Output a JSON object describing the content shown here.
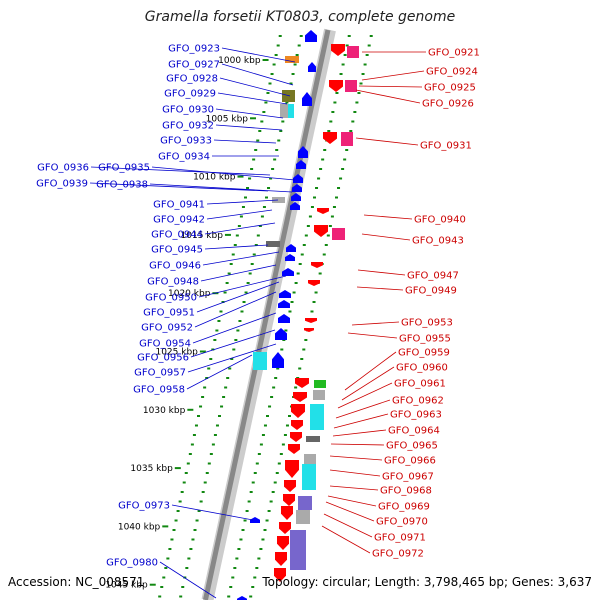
{
  "title": "Gramella forsetii KT0803, complete genome",
  "footer": {
    "accession": "Accession: NC_008571",
    "summary": "Topology: circular; Length: 3,798,465 bp; Genes: 3,637"
  },
  "colors": {
    "left_label": "#0000cc",
    "right_label": "#cc0000",
    "left_arrow": "#0000ff",
    "right_arrow": "#ff0000",
    "tick": "#118811",
    "backbone": "#888888",
    "magenta": "#ee2277",
    "cyan": "#22e0e8",
    "green": "#22bb22",
    "olive": "#777722",
    "orange": "#ee8822",
    "gray": "#aaaaaa",
    "dark_gray": "#666666",
    "purple": "#7766cc"
  },
  "kbp_ticks": [
    "1000 kbp",
    "1005 kbp",
    "1010 kbp",
    "1015 kbp",
    "1020 kbp",
    "1025 kbp",
    "1030 kbp",
    "1035 kbp",
    "1040 kbp",
    "1045 kbp"
  ],
  "left_genes": [
    "GFO_0923",
    "GFO_0927",
    "GFO_0928",
    "GFO_0929",
    "GFO_0930",
    "GFO_0932",
    "GFO_0933",
    "GFO_0934",
    "GFO_0936",
    "GFO_0935",
    "GFO_0939",
    "GFO_0938",
    "GFO_0941",
    "GFO_0942",
    "GFO_0944",
    "GFO_0945",
    "GFO_0946",
    "GFO_0948",
    "GFO_0950",
    "GFO_0951",
    "GFO_0952",
    "GFO_0954",
    "GFO_0956",
    "GFO_0957",
    "GFO_0958",
    "GFO_0973",
    "GFO_0980"
  ],
  "right_genes": [
    "GFO_0921",
    "GFO_0924",
    "GFO_0925",
    "GFO_0926",
    "GFO_0931",
    "GFO_0940",
    "GFO_0943",
    "GFO_0947",
    "GFO_0949",
    "GFO_0953",
    "GFO_0955",
    "GFO_0959",
    "GFO_0960",
    "GFO_0961",
    "GFO_0962",
    "GFO_0963",
    "GFO_0964",
    "GFO_0965",
    "GFO_0966",
    "GFO_0967",
    "GFO_0968",
    "GFO_0969",
    "GFO_0970",
    "GFO_0971",
    "GFO_0972"
  ]
}
